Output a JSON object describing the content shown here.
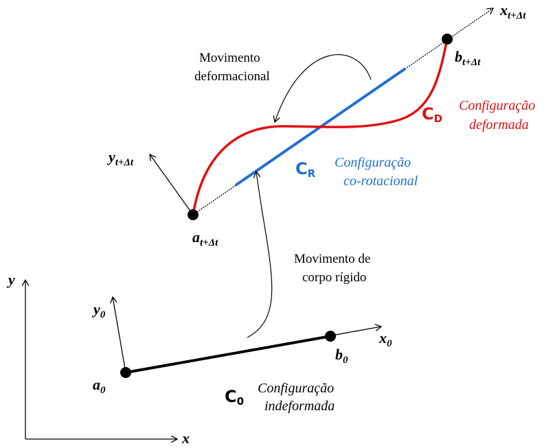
{
  "global_axes": {
    "x": "x",
    "y": "y"
  },
  "undeformed": {
    "a": {
      "base": "a",
      "sub": "0"
    },
    "b": {
      "base": "b",
      "sub": "0"
    },
    "x_axis": {
      "base": "x",
      "sub": "0"
    },
    "y_axis": {
      "base": "y",
      "sub": "0"
    },
    "config": {
      "base": "C",
      "sub": "0",
      "lines": [
        "Configuração",
        "indeformada"
      ]
    }
  },
  "current": {
    "a": {
      "base": "a",
      "sub": "t+Δt"
    },
    "b": {
      "base": "b",
      "sub": "t+Δt"
    },
    "x_axis": {
      "base": "x",
      "sub": "t+Δt"
    },
    "y_axis": {
      "base": "y",
      "sub": "t+Δt"
    }
  },
  "corotational": {
    "base": "C",
    "sub": "R",
    "lines": [
      "Configuração",
      "co-rotacional"
    ]
  },
  "deformed": {
    "base": "C",
    "sub": "D",
    "lines": [
      "Configuração",
      "deformada"
    ]
  },
  "annotations": {
    "deformational": [
      "Movimento",
      "deformacional"
    ],
    "rigid": [
      "Movimento de",
      "corpo rígido"
    ]
  }
}
